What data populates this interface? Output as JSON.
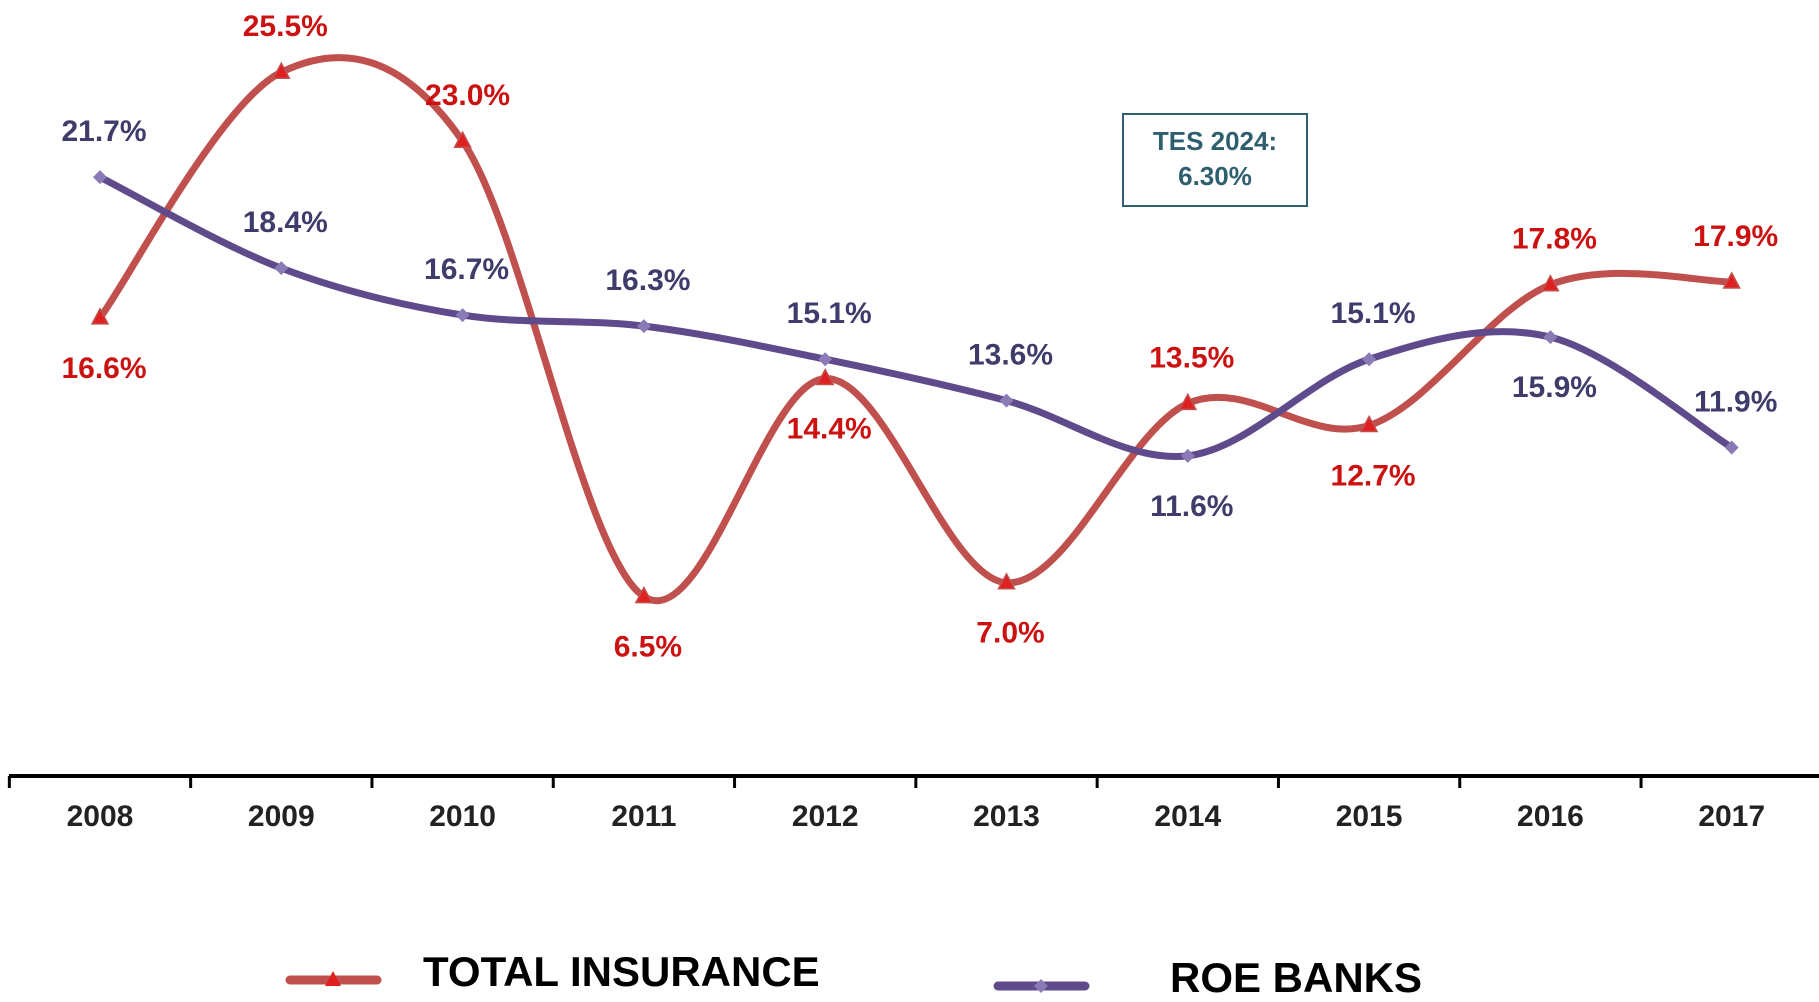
{
  "chart_data": {
    "type": "line",
    "categories": [
      "2008",
      "2009",
      "2010",
      "2011",
      "2012",
      "2013",
      "2014",
      "2015",
      "2016",
      "2017"
    ],
    "series": [
      {
        "name": "TOTAL INSURANCE",
        "color": "#c0504d",
        "label_color": "#cc1111",
        "values": [
          16.6,
          25.5,
          23.0,
          6.5,
          14.4,
          7.0,
          13.5,
          12.7,
          17.8,
          17.9
        ],
        "value_labels": [
          "16.6%",
          "25.5%",
          "23.0%",
          "6.5%",
          "14.4%",
          "7.0%",
          "13.5%",
          "12.7%",
          "17.8%",
          "17.9%"
        ]
      },
      {
        "name": "ROE BANKS",
        "color": "#5f4b8b",
        "label_color": "#3f3b6b",
        "values": [
          21.7,
          18.4,
          16.7,
          16.3,
          15.1,
          13.6,
          11.6,
          15.1,
          15.9,
          11.9
        ],
        "value_labels": [
          "21.7%",
          "18.4%",
          "16.7%",
          "16.3%",
          "15.1%",
          "13.6%",
          "11.6%",
          "15.1%",
          "15.9%",
          "11.9%"
        ]
      }
    ],
    "annotation": [
      "TES 2024:",
      "6.30%"
    ]
  }
}
